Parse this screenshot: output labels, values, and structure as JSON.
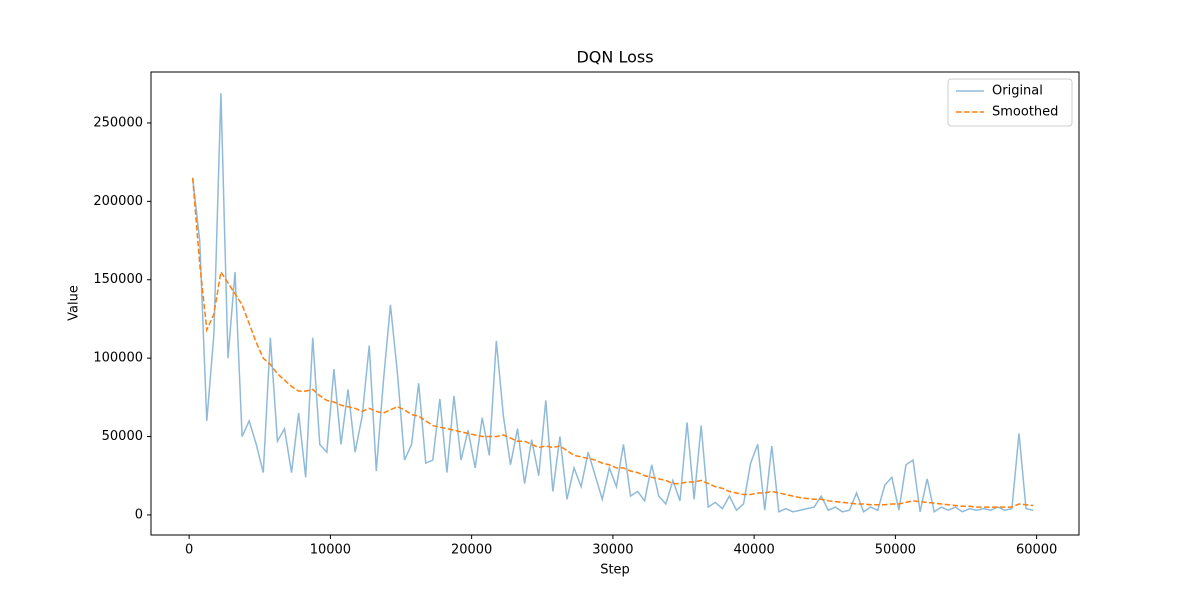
{
  "chart_data": {
    "type": "line",
    "title": "DQN Loss",
    "xlabel": "Step",
    "ylabel": "Value",
    "x": [
      250,
      750,
      1250,
      1750,
      2250,
      2750,
      3250,
      3750,
      4250,
      4750,
      5250,
      5750,
      6250,
      6750,
      7250,
      7750,
      8250,
      8750,
      9250,
      9750,
      10250,
      10750,
      11250,
      11750,
      12250,
      12750,
      13250,
      13750,
      14250,
      14750,
      15250,
      15750,
      16250,
      16750,
      17250,
      17750,
      18250,
      18750,
      19250,
      19750,
      20250,
      20750,
      21250,
      21750,
      22250,
      22750,
      23250,
      23750,
      24250,
      24750,
      25250,
      25750,
      26250,
      26750,
      27250,
      27750,
      28250,
      28750,
      29250,
      29750,
      30250,
      30750,
      31250,
      31750,
      32250,
      32750,
      33250,
      33750,
      34250,
      34750,
      35250,
      35750,
      36250,
      36750,
      37250,
      37750,
      38250,
      38750,
      39250,
      39750,
      40250,
      40750,
      41250,
      41750,
      42250,
      42750,
      43250,
      43750,
      44250,
      44750,
      45250,
      45750,
      46250,
      46750,
      47250,
      47750,
      48250,
      48750,
      49250,
      49750,
      50250,
      50750,
      51250,
      51750,
      52250,
      52750,
      53250,
      53750,
      54250,
      54750,
      55250,
      55750,
      56250,
      56750,
      57250,
      57750,
      58250,
      58750,
      59250,
      59750
    ],
    "series": [
      {
        "name": "Original",
        "color": "#1f77b4",
        "opacity": 0.5,
        "linestyle": "solid",
        "values": [
          215000,
          175000,
          60000,
          115000,
          269000,
          100000,
          155000,
          50000,
          60000,
          45000,
          27000,
          113000,
          47000,
          55000,
          27000,
          65000,
          24000,
          113000,
          45000,
          40000,
          93000,
          45000,
          80000,
          40000,
          63000,
          108000,
          28000,
          85000,
          134000,
          90000,
          35000,
          45000,
          84000,
          33000,
          35000,
          74000,
          27000,
          76000,
          35000,
          54000,
          30000,
          62000,
          38000,
          111000,
          63000,
          32000,
          55000,
          20000,
          48000,
          25000,
          73000,
          15000,
          50000,
          10000,
          30000,
          18000,
          40000,
          25000,
          10000,
          30000,
          18000,
          45000,
          12000,
          15000,
          9000,
          32000,
          12000,
          7000,
          22000,
          9000,
          59000,
          10000,
          57000,
          5000,
          8000,
          4000,
          12000,
          3000,
          7000,
          33000,
          45000,
          3000,
          44000,
          2000,
          4000,
          2000,
          3000,
          4000,
          5000,
          12000,
          3000,
          5000,
          2000,
          3000,
          14000,
          2000,
          5000,
          3000,
          19000,
          24000,
          3000,
          32000,
          35000,
          2000,
          23000,
          2000,
          5000,
          3000,
          5000,
          2000,
          4000,
          3000,
          4000,
          3000,
          5000,
          3000,
          4000,
          52000,
          4000,
          3000
        ]
      },
      {
        "name": "Smoothed",
        "color": "#ff7f0e",
        "opacity": 1,
        "linestyle": "dashed",
        "values": [
          215000,
          160000,
          118000,
          128000,
          155000,
          148000,
          141000,
          134000,
          122000,
          110000,
          100000,
          96000,
          90000,
          86000,
          82000,
          79000,
          79000,
          80000,
          76000,
          73000,
          72000,
          70000,
          69000,
          68000,
          66000,
          68000,
          66000,
          65000,
          67000,
          69000,
          67000,
          64000,
          63000,
          60000,
          57000,
          56000,
          55000,
          54000,
          53000,
          52000,
          51000,
          50000,
          50000,
          50000,
          51000,
          49000,
          47000,
          47000,
          45000,
          43000,
          44000,
          43000,
          44000,
          41000,
          38000,
          37000,
          36000,
          35000,
          33000,
          32000,
          30000,
          30000,
          28000,
          27000,
          25000,
          24000,
          23000,
          22000,
          20000,
          20000,
          21000,
          21000,
          22000,
          20000,
          18000,
          17000,
          15000,
          14000,
          13000,
          13000,
          14000,
          14000,
          15000,
          14000,
          13000,
          12000,
          11000,
          10500,
          10000,
          10000,
          9000,
          8500,
          8000,
          7500,
          7000,
          7000,
          6500,
          6500,
          6500,
          7000,
          7000,
          8000,
          9000,
          8500,
          8000,
          7500,
          7000,
          6500,
          6000,
          5500,
          5500,
          5000,
          5000,
          5000,
          5000,
          5000,
          5000,
          7000,
          6500,
          6000
        ]
      }
    ],
    "xlim": [
      -2700,
      63000
    ],
    "ylim": [
      -12800,
      282500
    ],
    "xticks": [
      0,
      10000,
      20000,
      30000,
      40000,
      50000,
      60000
    ],
    "yticks": [
      0,
      50000,
      100000,
      150000,
      200000,
      250000
    ],
    "grid": false,
    "legend": "upper right"
  }
}
